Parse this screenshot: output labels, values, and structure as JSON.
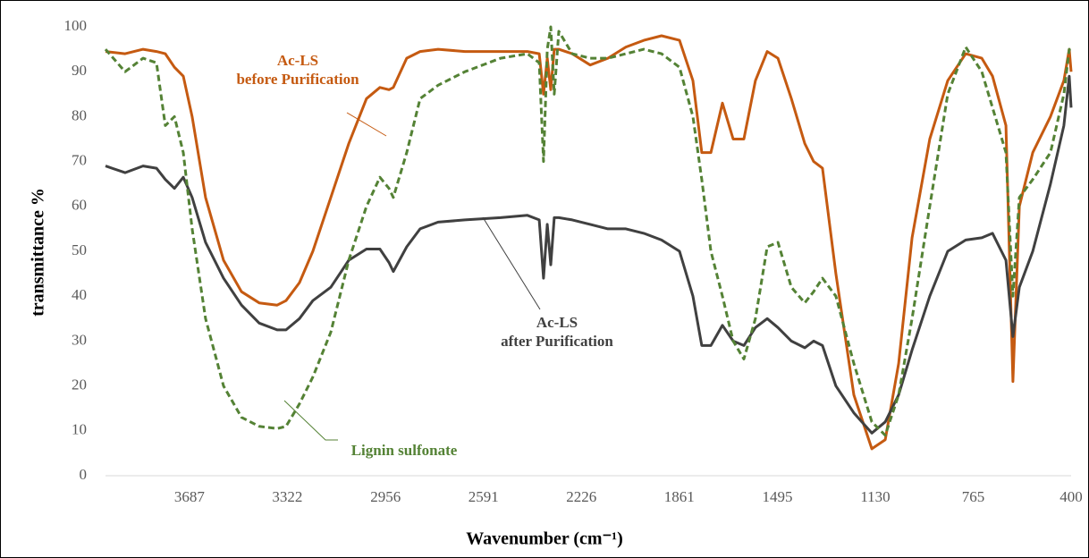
{
  "chart_data": {
    "type": "line",
    "xlabel": "Wavenumber (cm⁻¹)",
    "ylabel": "transmittance %",
    "x": [
      4000,
      3927,
      3860,
      3810,
      3777,
      3743,
      3710,
      3677,
      3627,
      3560,
      3493,
      3427,
      3360,
      3327,
      3277,
      3227,
      3160,
      3093,
      3027,
      2977,
      2943,
      2927,
      2877,
      2827,
      2760,
      2660,
      2527,
      2427,
      2383,
      2367,
      2353,
      2340,
      2327,
      2310,
      2260,
      2193,
      2127,
      2060,
      1993,
      1927,
      1860,
      1810,
      1777,
      1743,
      1700,
      1660,
      1620,
      1577,
      1533,
      1493,
      1443,
      1393,
      1360,
      1327,
      1277,
      1210,
      1143,
      1093,
      1043,
      993,
      927,
      860,
      793,
      733,
      693,
      643,
      617,
      593,
      543,
      477,
      427,
      407,
      400
    ],
    "series": [
      {
        "name": "Ac-LS\nbefore Purification",
        "color": "#c55a11",
        "dashed": false,
        "values": [
          94.5,
          94,
          95,
          94.5,
          94,
          91,
          89,
          80,
          62,
          48,
          41,
          38.5,
          38,
          39,
          43,
          50,
          62,
          74,
          84,
          86.5,
          86,
          86.5,
          93,
          94.5,
          95,
          94.5,
          94.5,
          94.5,
          94,
          85,
          93,
          86,
          95,
          95,
          94,
          91.5,
          93,
          95.5,
          97,
          98,
          97,
          88,
          72,
          72,
          83,
          75,
          75,
          88,
          94.5,
          93,
          84,
          74,
          70,
          68.5,
          45,
          18,
          6,
          8,
          25,
          53,
          75,
          88,
          94,
          93,
          89,
          78,
          21,
          60,
          72,
          80,
          88,
          95,
          90
        ]
      },
      {
        "name": "Ac-LS\nafter Purification",
        "color": "#404040",
        "dashed": false,
        "values": [
          69,
          67.5,
          69,
          68.5,
          66,
          64,
          66.5,
          62,
          52,
          44,
          38,
          34,
          32.5,
          32.5,
          35,
          39,
          42,
          48,
          50.5,
          50.5,
          47.5,
          45.5,
          51,
          55,
          56.5,
          57,
          57.5,
          58,
          57,
          44,
          56,
          47,
          57.5,
          57.5,
          57,
          56,
          55,
          55,
          54,
          52.5,
          50,
          40,
          29,
          29,
          33.5,
          30,
          29,
          33,
          35,
          33,
          30,
          28.5,
          30,
          29,
          20,
          14,
          9.5,
          12,
          18,
          28,
          40,
          50,
          52.5,
          53,
          54,
          48,
          31,
          42,
          50,
          65,
          78,
          89,
          82
        ]
      },
      {
        "name": "Lignin sulfonate",
        "color": "#548235",
        "dashed": true,
        "values": [
          95,
          90,
          93,
          92,
          78,
          80,
          72,
          55,
          35,
          20,
          13,
          11,
          10.5,
          11,
          16,
          22,
          32,
          48,
          60,
          66.5,
          64,
          62,
          72,
          84,
          87,
          90,
          93,
          94,
          92,
          70,
          95,
          100,
          85,
          99,
          94,
          93,
          93,
          94,
          95,
          94,
          91,
          80,
          66,
          50,
          40,
          30,
          26,
          35,
          51,
          52,
          42,
          38.5,
          41,
          44,
          40,
          25,
          12,
          9,
          18,
          35,
          60,
          85,
          95.5,
          90,
          82,
          72,
          40,
          62,
          66,
          72,
          85,
          95,
          94
        ]
      }
    ],
    "xlim": [
      4000,
      400
    ],
    "xticks": [
      3687,
      3322,
      2956,
      2591,
      2226,
      1861,
      1495,
      1130,
      765,
      400
    ],
    "ylim": [
      0,
      100
    ],
    "yticks": [
      0,
      10,
      20,
      30,
      40,
      50,
      60,
      70,
      80,
      90,
      100
    ],
    "grid": false
  }
}
